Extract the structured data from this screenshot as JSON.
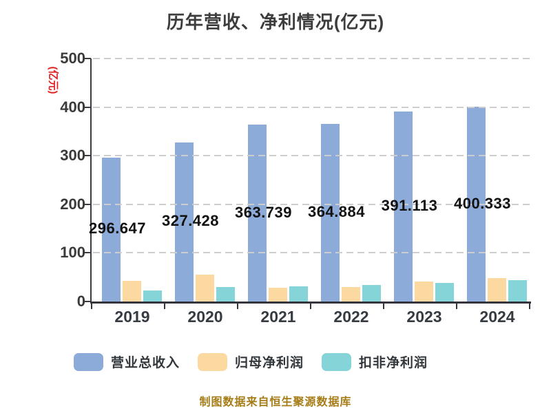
{
  "title": "历年营收、净利情况(亿元)",
  "y_axis_name": "(亿元)",
  "footer": "制图数据来自恒生聚源数据库",
  "colors": {
    "revenue": "#8cabd8",
    "net_profit": "#fcd9a0",
    "deducted_net_profit": "#84d4d8",
    "grid": "#cdcdcd",
    "axis": "#3a3a42",
    "title_text": "#3d3d3d",
    "axis_name_red": "#e02121",
    "footer_gold": "#a67c16",
    "value_label": "#111111"
  },
  "chart_data": {
    "type": "bar",
    "title": "历年营收、净利情况(亿元)",
    "categories": [
      "2019",
      "2020",
      "2021",
      "2022",
      "2023",
      "2024"
    ],
    "series": [
      {
        "key": "revenue",
        "name": "营业总收入",
        "values": [
          296.647,
          327.428,
          363.739,
          364.884,
          391.113,
          400.333
        ],
        "data_labels": [
          "296.647",
          "327.428",
          "363.739",
          "364.884",
          "391.113",
          "400.333"
        ]
      },
      {
        "key": "net_profit",
        "name": "归母净利润",
        "values": [
          41.8,
          55.2,
          28.0,
          30.0,
          40.9,
          47.5
        ],
        "data_labels": null
      },
      {
        "key": "deducted_net_profit",
        "name": "扣非净利润",
        "values": [
          22.9,
          29.2,
          31.5,
          33.8,
          37.6,
          44.0
        ],
        "data_labels": null
      }
    ],
    "ylabel": "(亿元)",
    "ylim": [
      0,
      500
    ],
    "yticks": [
      0,
      100,
      200,
      300,
      400,
      500
    ],
    "grid": "dashed-horizontal",
    "legend_position": "bottom"
  }
}
